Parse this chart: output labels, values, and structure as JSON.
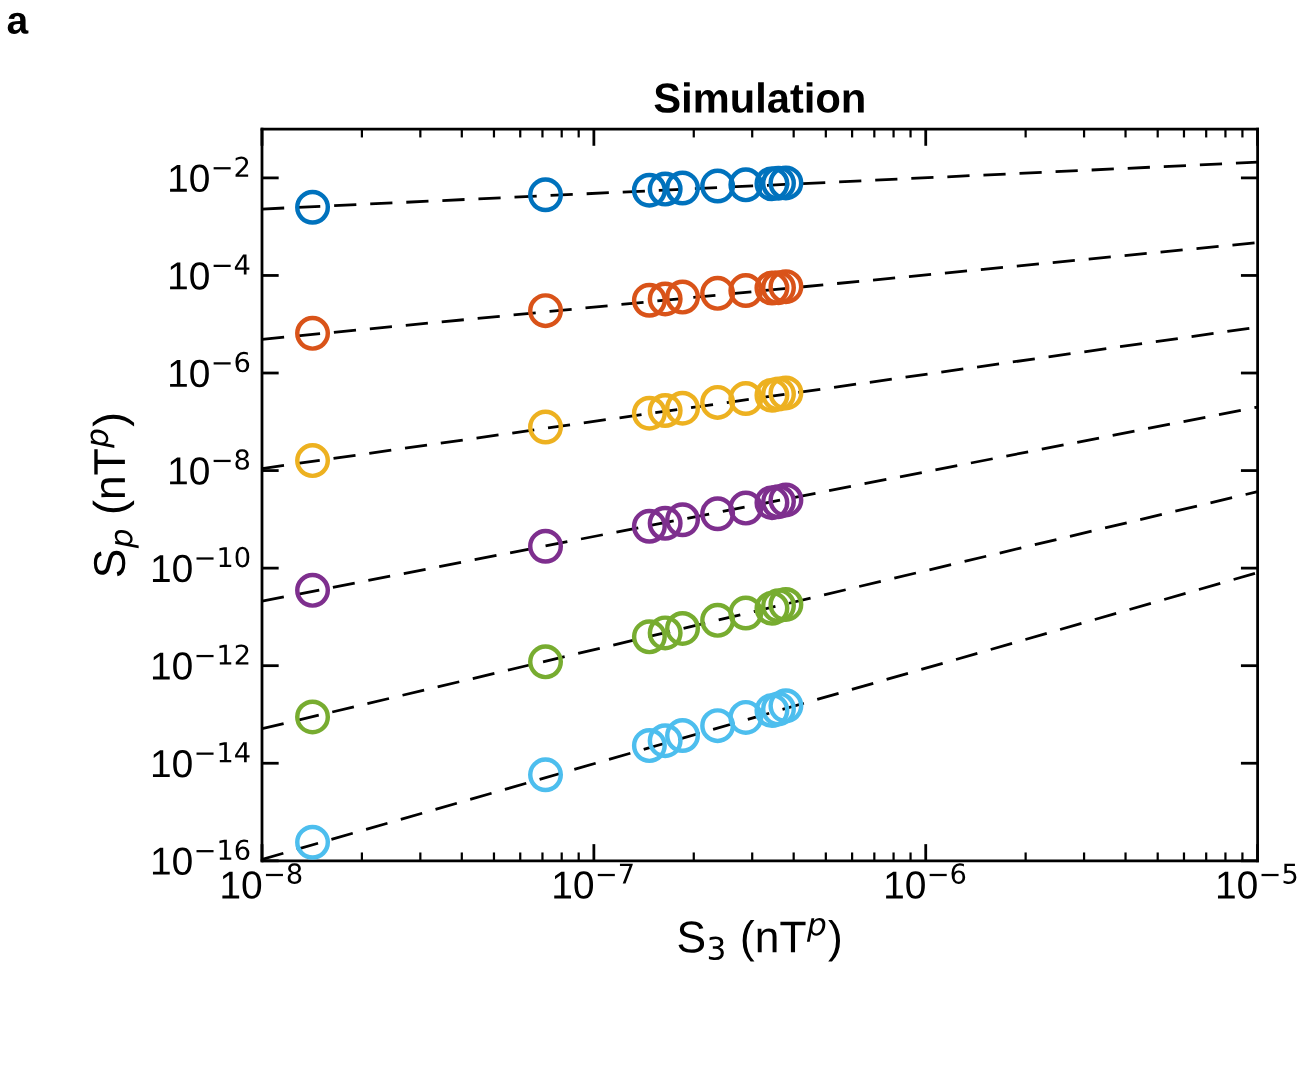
{
  "chart_data": {
    "type": "scatter",
    "title": "Simulation",
    "xlabel": "S$_{3}$ (nT$^{p}$)",
    "ylabel": "S$_{p}$ (nT$^{p}$)",
    "annotations": [
      "a"
    ],
    "log": "xy",
    "grid": false,
    "legend": false,
    "marker": "circle",
    "xlim": [
      1e-08,
      1e-05
    ],
    "xticks": [
      {
        "value": 1e-08,
        "label": "10$^{−8}$"
      },
      {
        "value": 1e-07,
        "label": "10$^{−7}$"
      },
      {
        "value": 1e-06,
        "label": "10$^{−6}$"
      },
      {
        "value": 1e-05,
        "label": "10$^{−5}$"
      }
    ],
    "ylim": [
      1e-16,
      0.1
    ],
    "yticks": [
      {
        "value": 1e-16,
        "label": "10$^{−16}$"
      },
      {
        "value": 1e-14,
        "label": "10$^{−14}$"
      },
      {
        "value": 1e-12,
        "label": "10$^{−12}$"
      },
      {
        "value": 1e-10,
        "label": "10$^{−10}$"
      },
      {
        "value": 1e-08,
        "label": "10$^{−8}$"
      },
      {
        "value": 1e-06,
        "label": "10$^{−6}$"
      },
      {
        "value": 0.0001,
        "label": "10$^{−4}$"
      },
      {
        "value": 0.01,
        "label": "10$^{−2}$"
      }
    ],
    "series": [
      {
        "color": "#0072bd",
        "x": [
          1.42e-08,
          7.15e-08,
          1.47e-07,
          1.64e-07,
          1.85e-07,
          2.36e-07,
          2.87e-07,
          3.44e-07,
          3.6e-07,
          3.79e-07
        ],
        "values": [
          0.0025,
          0.0045,
          0.0056,
          0.0059,
          0.0062,
          0.0068,
          0.0072,
          0.0076,
          0.0078,
          0.0079
        ]
      },
      {
        "color": "#d95319",
        "x": [
          1.42e-08,
          7.15e-08,
          1.47e-07,
          1.64e-07,
          1.85e-07,
          2.36e-07,
          2.87e-07,
          3.44e-07,
          3.6e-07,
          3.79e-07
        ],
        "values": [
          6.5e-06,
          1.9e-05,
          3.1e-05,
          3.3e-05,
          3.6e-05,
          4.3e-05,
          4.9e-05,
          5.5e-05,
          5.6e-05,
          5.9e-05
        ]
      },
      {
        "color": "#edb120",
        "x": [
          1.42e-08,
          7.15e-08,
          1.47e-07,
          1.64e-07,
          1.85e-07,
          2.36e-07,
          2.87e-07,
          3.44e-07,
          3.6e-07,
          3.79e-07
        ],
        "values": [
          1.6e-08,
          7.8e-08,
          1.5e-07,
          1.7e-07,
          1.9e-07,
          2.5e-07,
          3e-07,
          3.5e-07,
          3.7e-07,
          3.9e-07
        ]
      },
      {
        "color": "#7e2f8e",
        "x": [
          1.42e-08,
          7.15e-08,
          1.47e-07,
          1.64e-07,
          1.85e-07,
          2.36e-07,
          2.87e-07,
          3.44e-07,
          3.6e-07,
          3.79e-07
        ],
        "values": [
          3.5e-11,
          2.8e-10,
          7.2e-10,
          8.3e-10,
          9.8e-10,
          1.3e-09,
          1.7e-09,
          2.2e-09,
          2.3e-09,
          2.5e-09
        ]
      },
      {
        "color": "#77ac30",
        "x": [
          1.42e-08,
          7.15e-08,
          1.47e-07,
          1.64e-07,
          1.85e-07,
          2.36e-07,
          2.87e-07,
          3.44e-07,
          3.6e-07,
          3.79e-07
        ],
        "values": [
          8.9e-14,
          1.2e-12,
          3.9e-12,
          4.7e-12,
          5.8e-12,
          8.5e-12,
          1.2e-11,
          1.5e-11,
          1.7e-11,
          1.8e-11
        ]
      },
      {
        "color": "#4dbeee",
        "x": [
          1.42e-08,
          7.15e-08,
          1.47e-07,
          1.64e-07,
          1.85e-07,
          2.36e-07,
          2.87e-07,
          3.44e-07,
          3.6e-07,
          3.79e-07
        ],
        "values": [
          2.4e-16,
          5.8e-15,
          2.3e-14,
          2.9e-14,
          3.7e-14,
          5.9e-14,
          8.7e-14,
          1.2e-13,
          1.3e-13,
          1.5e-13
        ]
      },
      {
        "type": "line",
        "color": "#000000",
        "marker": "none",
        "line_style": "dashed",
        "x": [
          1e-08,
          1e-05
        ],
        "values": [
          0.0023,
          0.021
        ]
      },
      {
        "type": "line",
        "color": "#000000",
        "marker": "none",
        "line_style": "dashed",
        "x": [
          1e-08,
          1e-05
        ],
        "values": [
          4.9e-06,
          0.00047
        ]
      },
      {
        "type": "line",
        "color": "#000000",
        "marker": "none",
        "line_style": "dashed",
        "x": [
          1e-08,
          1e-05
        ],
        "values": [
          1.1e-08,
          8.7e-06
        ]
      },
      {
        "type": "line",
        "color": "#000000",
        "marker": "none",
        "line_style": "dashed",
        "x": [
          1e-08,
          1e-05
        ],
        "values": [
          2.1e-11,
          2e-07
        ]
      },
      {
        "type": "line",
        "color": "#000000",
        "marker": "none",
        "line_style": "dashed",
        "x": [
          1e-08,
          1e-05
        ],
        "values": [
          5.1e-14,
          3.7e-09
        ]
      },
      {
        "type": "line",
        "color": "#000000",
        "marker": "none",
        "line_style": "dashed",
        "x": [
          1e-08,
          1e-05
        ],
        "values": [
          1.07e-16,
          8.1e-11
        ]
      }
    ]
  }
}
